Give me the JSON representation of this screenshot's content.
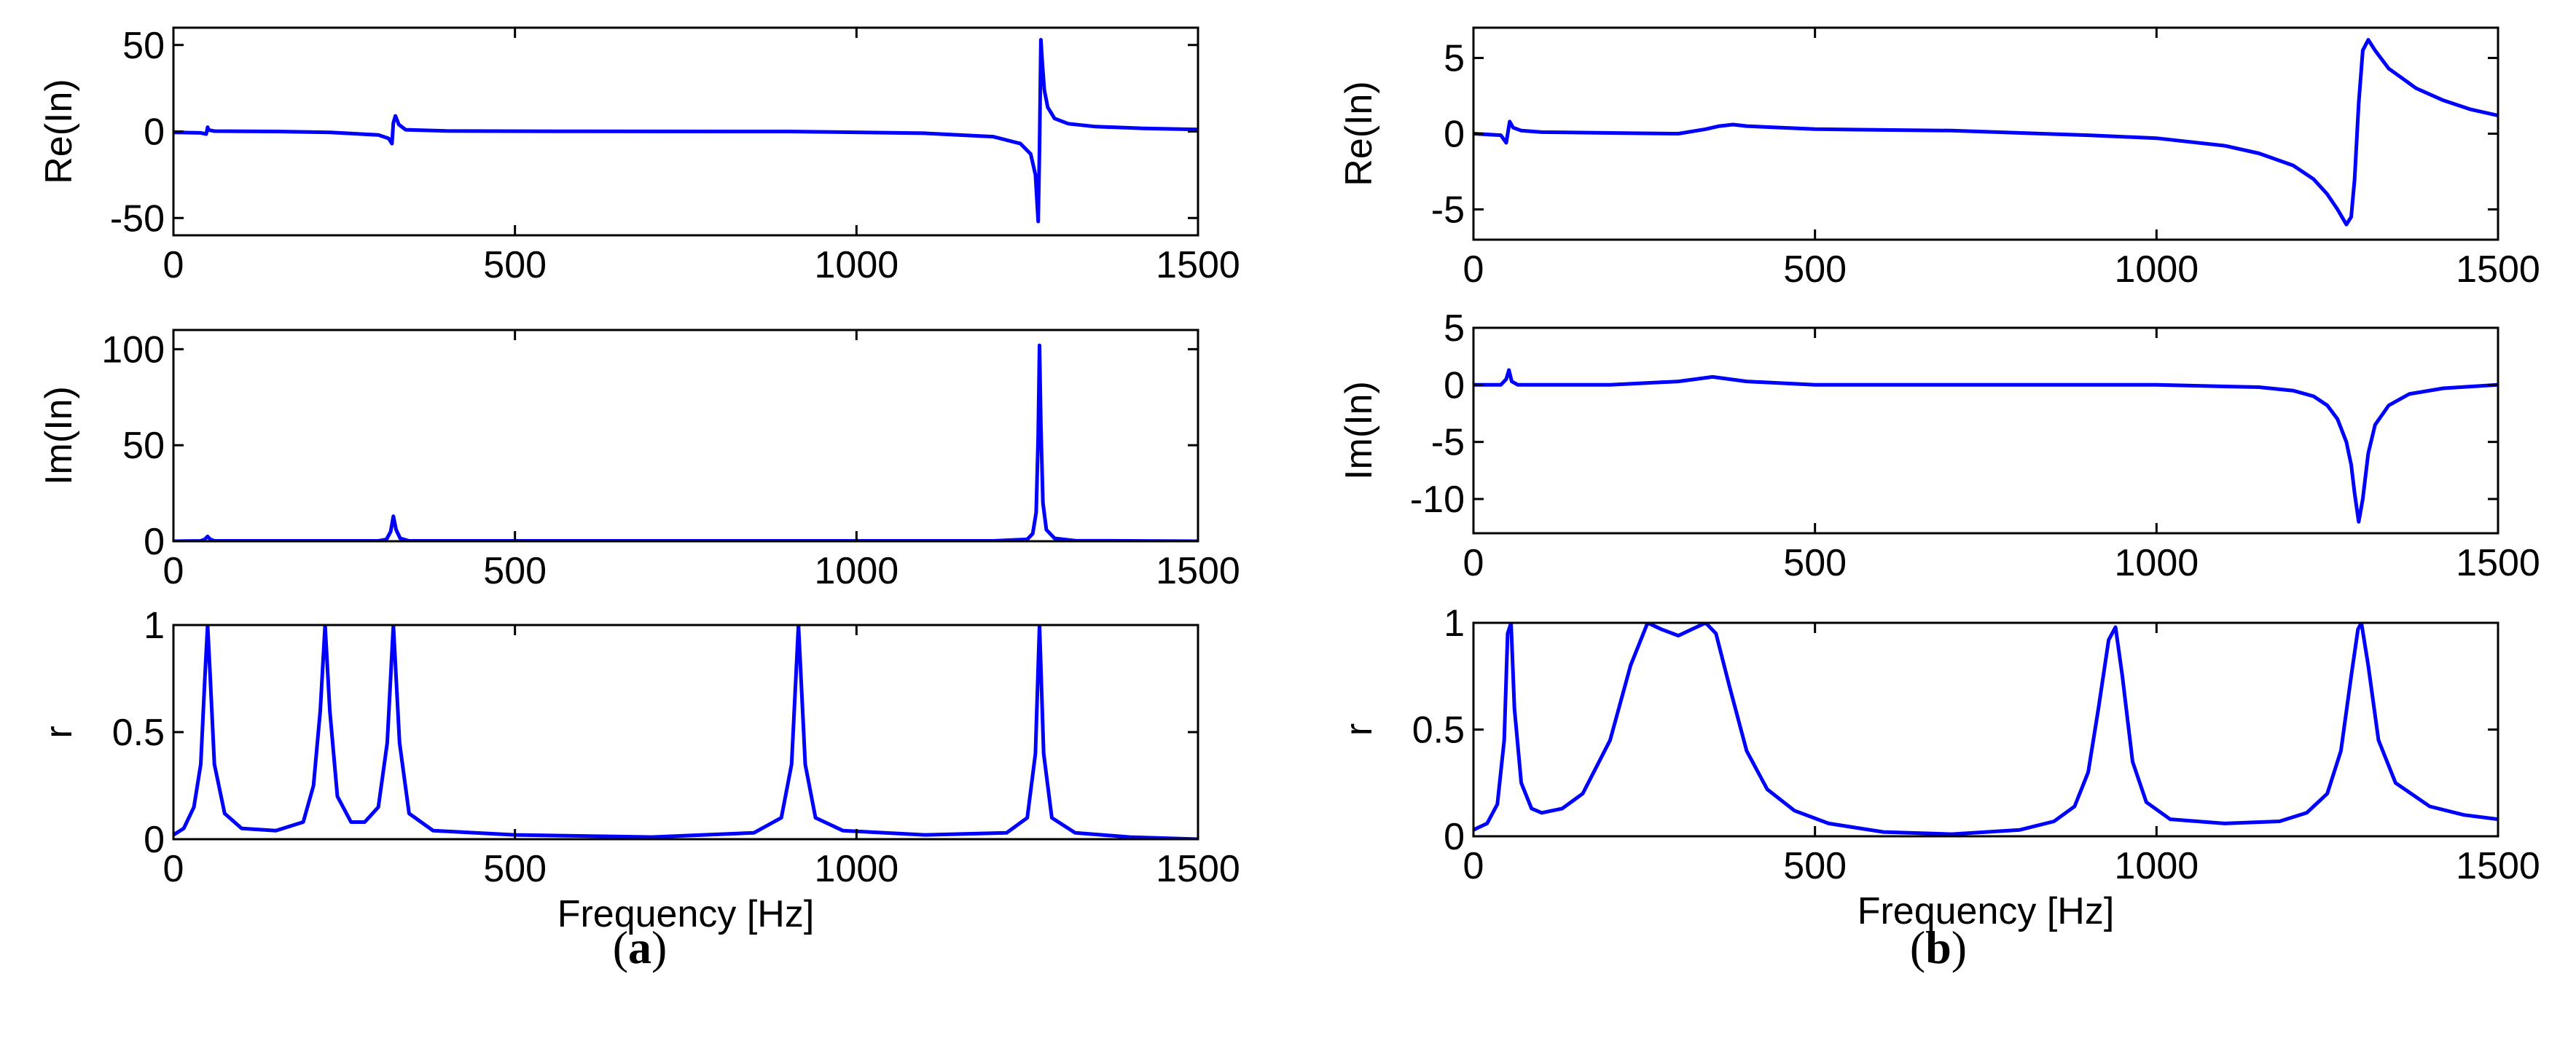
{
  "series_color": "#0000ff",
  "panels": [
    {
      "caption": "a",
      "chart_data": [
        {
          "type": "line",
          "title": "",
          "xlabel": "",
          "ylabel": "Re(In)",
          "xlim": [
            0,
            1500
          ],
          "ylim": [
            -60,
            60
          ],
          "xticks": [
            0,
            500,
            1000,
            1500
          ],
          "yticks": [
            -50,
            0,
            50
          ],
          "xtick_labels": [
            "0",
            "500",
            "1000",
            "1500"
          ],
          "ytick_labels": [
            "-50",
            "0",
            "50"
          ],
          "series": [
            {
              "name": "Re(In)",
              "x": [
                0,
                40,
                48,
                50,
                52,
                60,
                150,
                230,
                300,
                315,
                320,
                322,
                325,
                330,
                340,
                400,
                600,
                900,
                1100,
                1200,
                1240,
                1255,
                1262,
                1266,
                1268,
                1270,
                1272,
                1275,
                1280,
                1290,
                1310,
                1350,
                1420,
                1500
              ],
              "values": [
                -0.5,
                -0.8,
                -1.5,
                2.5,
                0.8,
                0.2,
                0,
                -0.5,
                -2,
                -4,
                -7,
                5,
                9,
                4,
                1,
                0.3,
                0.1,
                0,
                -1,
                -3,
                -7,
                -13,
                -25,
                -52,
                -10,
                53,
                40,
                24,
                14,
                7.5,
                4.5,
                2.8,
                1.8,
                1.2
              ]
            }
          ]
        },
        {
          "type": "line",
          "title": "",
          "xlabel": "",
          "ylabel": "Im(In)",
          "xlim": [
            0,
            1500
          ],
          "ylim": [
            0,
            110
          ],
          "xticks": [
            0,
            500,
            1000,
            1500
          ],
          "yticks": [
            0,
            50,
            100
          ],
          "xtick_labels": [
            "0",
            "500",
            "1000",
            "1500"
          ],
          "ytick_labels": [
            "0",
            "50",
            "100"
          ],
          "series": [
            {
              "name": "Im(In)",
              "x": [
                0,
                40,
                46,
                50,
                54,
                60,
                300,
                312,
                318,
                322,
                326,
                332,
                345,
                1200,
                1250,
                1258,
                1263,
                1266,
                1268,
                1270,
                1273,
                1278,
                1290,
                1320,
                1500
              ],
              "values": [
                0,
                0.2,
                1,
                2.5,
                1,
                0.2,
                0.2,
                1,
                5,
                13,
                6,
                1.5,
                0.2,
                0.2,
                1,
                4,
                15,
                55,
                102,
                60,
                20,
                6,
                1.5,
                0.3,
                0
              ]
            }
          ]
        },
        {
          "type": "line",
          "title": "",
          "xlabel": "Frequency [Hz]",
          "ylabel": "r",
          "xlim": [
            0,
            1500
          ],
          "ylim": [
            0,
            1
          ],
          "xticks": [
            0,
            500,
            1000,
            1500
          ],
          "yticks": [
            0,
            0.5,
            1
          ],
          "xtick_labels": [
            "0",
            "500",
            "1000",
            "1500"
          ],
          "ytick_labels": [
            "0",
            "0.5",
            "1"
          ],
          "series": [
            {
              "name": "r",
              "x": [
                0,
                15,
                30,
                40,
                46,
                50,
                54,
                60,
                75,
                100,
                150,
                190,
                205,
                215,
                222,
                229,
                240,
                260,
                280,
                300,
                313,
                322,
                331,
                345,
                380,
                500,
                700,
                850,
                890,
                905,
                915,
                925,
                940,
                980,
                1100,
                1220,
                1250,
                1262,
                1268,
                1274,
                1286,
                1320,
                1400,
                1500
              ],
              "values": [
                0.02,
                0.05,
                0.15,
                0.35,
                0.75,
                1.0,
                0.75,
                0.35,
                0.12,
                0.05,
                0.04,
                0.08,
                0.25,
                0.6,
                1.0,
                0.6,
                0.2,
                0.08,
                0.08,
                0.15,
                0.45,
                1.0,
                0.45,
                0.12,
                0.04,
                0.02,
                0.01,
                0.03,
                0.1,
                0.35,
                1.0,
                0.35,
                0.1,
                0.04,
                0.02,
                0.03,
                0.1,
                0.4,
                1.0,
                0.4,
                0.1,
                0.03,
                0.01,
                0.0
              ]
            }
          ]
        }
      ]
    },
    {
      "caption": "b",
      "chart_data": [
        {
          "type": "line",
          "title": "",
          "xlabel": "",
          "ylabel": "Re(In)",
          "xlim": [
            0,
            1500
          ],
          "ylim": [
            -7,
            7
          ],
          "xticks": [
            0,
            500,
            1000,
            1500
          ],
          "yticks": [
            -5,
            0,
            5
          ],
          "xtick_labels": [
            "0",
            "500",
            "1000",
            "1500"
          ],
          "ytick_labels": [
            "-5",
            "0",
            "5"
          ],
          "series": [
            {
              "name": "Re(In)",
              "x": [
                0,
                40,
                48,
                53,
                58,
                70,
                100,
                200,
                300,
                340,
                360,
                380,
                400,
                500,
                700,
                900,
                1000,
                1100,
                1150,
                1200,
                1230,
                1250,
                1265,
                1278,
                1285,
                1290,
                1296,
                1302,
                1310,
                1320,
                1340,
                1380,
                1420,
                1460,
                1500
              ],
              "values": [
                0,
                -0.1,
                -0.6,
                0.8,
                0.4,
                0.2,
                0.1,
                0.05,
                0,
                0.3,
                0.5,
                0.6,
                0.5,
                0.3,
                0.2,
                -0.1,
                -0.3,
                -0.8,
                -1.3,
                -2.1,
                -3.0,
                -4.0,
                -5.0,
                -6.0,
                -5.5,
                -3.0,
                2.0,
                5.5,
                6.2,
                5.5,
                4.3,
                3.0,
                2.2,
                1.6,
                1.2
              ]
            }
          ]
        },
        {
          "type": "line",
          "title": "",
          "xlabel": "",
          "ylabel": "Im(In)",
          "xlim": [
            0,
            1500
          ],
          "ylim": [
            -13,
            5
          ],
          "xticks": [
            0,
            500,
            1000,
            1500
          ],
          "yticks": [
            -10,
            -5,
            0,
            5
          ],
          "xtick_labels": [
            "0",
            "500",
            "1000",
            "1500"
          ],
          "ytick_labels": [
            "-10",
            "-5",
            "0",
            "5"
          ],
          "series": [
            {
              "name": "Im(In)",
              "x": [
                0,
                40,
                48,
                52,
                56,
                65,
                200,
                300,
                350,
                400,
                500,
                1000,
                1150,
                1200,
                1230,
                1250,
                1265,
                1278,
                1285,
                1290,
                1296,
                1302,
                1310,
                1320,
                1340,
                1370,
                1420,
                1500
              ],
              "values": [
                0,
                0,
                0.5,
                1.3,
                0.3,
                0,
                0,
                0.3,
                0.7,
                0.3,
                0,
                0,
                -0.2,
                -0.5,
                -1.0,
                -1.8,
                -3.0,
                -5.0,
                -7.0,
                -9.5,
                -12.0,
                -10.0,
                -6.0,
                -3.5,
                -1.8,
                -0.8,
                -0.3,
                0
              ]
            }
          ]
        },
        {
          "type": "line",
          "title": "",
          "xlabel": "Frequency [Hz]",
          "ylabel": "r",
          "xlim": [
            0,
            1500
          ],
          "ylim": [
            0,
            1
          ],
          "xticks": [
            0,
            500,
            1000,
            1500
          ],
          "yticks": [
            0,
            0.5,
            1
          ],
          "xtick_labels": [
            "0",
            "500",
            "1000",
            "1500"
          ],
          "ytick_labels": [
            "0",
            "0.5",
            "1"
          ],
          "series": [
            {
              "name": "r",
              "x": [
                0,
                20,
                35,
                45,
                50,
                55,
                60,
                70,
                85,
                100,
                130,
                160,
                200,
                230,
                255,
                275,
                300,
                320,
                340,
                355,
                375,
                400,
                430,
                470,
                520,
                600,
                700,
                800,
                850,
                880,
                900,
                915,
                930,
                940,
                950,
                965,
                985,
                1020,
                1100,
                1180,
                1220,
                1250,
                1270,
                1285,
                1295,
                1300,
                1310,
                1325,
                1350,
                1400,
                1450,
                1500
              ],
              "values": [
                0.03,
                0.06,
                0.15,
                0.45,
                0.95,
                1.0,
                0.6,
                0.25,
                0.13,
                0.11,
                0.13,
                0.2,
                0.45,
                0.8,
                1.0,
                0.97,
                0.94,
                0.97,
                1.0,
                0.95,
                0.7,
                0.4,
                0.22,
                0.12,
                0.06,
                0.02,
                0.01,
                0.03,
                0.07,
                0.14,
                0.3,
                0.6,
                0.92,
                0.98,
                0.75,
                0.35,
                0.16,
                0.08,
                0.06,
                0.07,
                0.11,
                0.2,
                0.4,
                0.75,
                0.97,
                1.0,
                0.8,
                0.45,
                0.25,
                0.14,
                0.1,
                0.08
              ]
            }
          ]
        }
      ]
    }
  ]
}
